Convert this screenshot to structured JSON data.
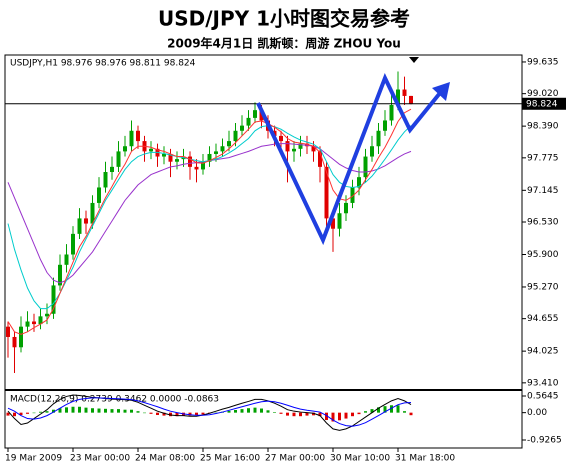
{
  "title": "USD/JPY 1小时图交易参考",
  "subtitle": "2009年4月1日 凯斯顿：周游 ZHOU You",
  "chart_data": [
    {
      "type": "candlestick",
      "label": "USDJPY,H1 98.976 98.976 98.811 98.824",
      "categories": [
        "19 Mar 2009",
        null,
        null,
        null,
        null,
        null,
        null,
        null,
        null,
        null,
        "23 Mar 00:00",
        null,
        null,
        null,
        null,
        null,
        null,
        null,
        null,
        null,
        "24 Mar 08:00",
        null,
        null,
        null,
        null,
        null,
        null,
        null,
        null,
        null,
        "25 Mar 16:00",
        null,
        null,
        null,
        null,
        null,
        null,
        null,
        null,
        null,
        "27 Mar 00:00",
        null,
        null,
        null,
        null,
        null,
        null,
        null,
        null,
        null,
        "30 Mar 10:00",
        null,
        null,
        null,
        null,
        null,
        null,
        null,
        null,
        null,
        "31 Mar 18:00",
        null,
        null
      ],
      "open": [
        94.5,
        94.3,
        94.1,
        94.5,
        94.6,
        94.55,
        94.7,
        94.75,
        95.3,
        95.7,
        95.9,
        96.3,
        96.6,
        96.5,
        96.9,
        97.2,
        97.5,
        97.6,
        97.9,
        98.0,
        98.3,
        98.1,
        97.9,
        97.95,
        97.8,
        97.85,
        97.7,
        97.75,
        97.8,
        97.6,
        97.55,
        97.7,
        97.85,
        97.9,
        98.0,
        98.1,
        98.3,
        98.4,
        98.55,
        98.7,
        98.5,
        98.3,
        98.2,
        98.1,
        97.9,
        97.95,
        98.05,
        98.0,
        97.9,
        97.6,
        96.6,
        96.4,
        96.7,
        96.9,
        97.2,
        97.4,
        97.8,
        98.0,
        98.3,
        98.5,
        98.8,
        99.1,
        98.976
      ],
      "high": [
        94.6,
        94.4,
        94.7,
        94.8,
        94.75,
        94.85,
        94.95,
        95.45,
        95.9,
        96.1,
        96.45,
        96.8,
        96.75,
        97.05,
        97.4,
        97.7,
        97.8,
        98.1,
        98.2,
        98.5,
        98.4,
        98.2,
        98.1,
        98.05,
        98.0,
        97.95,
        97.9,
        97.95,
        97.9,
        97.75,
        97.85,
        98.0,
        98.05,
        98.15,
        98.3,
        98.45,
        98.6,
        98.7,
        98.85,
        98.8,
        98.6,
        98.4,
        98.3,
        98.2,
        98.1,
        98.2,
        98.2,
        98.1,
        98.0,
        97.7,
        96.75,
        96.9,
        97.05,
        97.35,
        97.6,
        97.95,
        98.2,
        98.45,
        98.7,
        99.0,
        99.45,
        99.35,
        98.976
      ],
      "low": [
        93.9,
        93.6,
        94.0,
        94.4,
        94.4,
        94.45,
        94.55,
        94.65,
        95.2,
        95.55,
        95.8,
        96.2,
        96.3,
        96.4,
        96.8,
        97.1,
        97.35,
        97.5,
        97.8,
        97.9,
        97.95,
        97.7,
        97.75,
        97.6,
        97.65,
        97.4,
        97.55,
        97.6,
        97.35,
        97.3,
        97.45,
        97.6,
        97.7,
        97.8,
        97.9,
        98.0,
        98.2,
        98.3,
        98.45,
        98.35,
        98.15,
        98.0,
        97.9,
        97.3,
        97.7,
        97.8,
        97.85,
        97.7,
        97.3,
        96.4,
        95.95,
        96.25,
        96.55,
        96.8,
        97.05,
        97.3,
        97.7,
        97.85,
        98.2,
        98.4,
        98.7,
        98.8,
        98.811
      ],
      "close": [
        94.3,
        94.1,
        94.5,
        94.6,
        94.55,
        94.7,
        94.75,
        95.3,
        95.7,
        95.9,
        96.3,
        96.6,
        96.5,
        96.9,
        97.2,
        97.5,
        97.6,
        97.9,
        98.0,
        98.3,
        98.1,
        97.9,
        97.95,
        97.8,
        97.85,
        97.7,
        97.75,
        97.8,
        97.6,
        97.55,
        97.7,
        97.85,
        97.9,
        98.0,
        98.1,
        98.3,
        98.4,
        98.55,
        98.7,
        98.5,
        98.3,
        98.2,
        98.1,
        97.9,
        97.95,
        98.05,
        98.0,
        97.9,
        97.6,
        96.6,
        96.4,
        96.7,
        96.9,
        97.2,
        97.4,
        97.8,
        98.0,
        98.3,
        98.5,
        98.8,
        99.1,
        98.976,
        98.824
      ],
      "up_color": "#00a000",
      "down_color": "#e00000",
      "series": [
        {
          "color": "#9933cc",
          "values": [
            97.3,
            97.0,
            96.7,
            96.4,
            96.1,
            95.8,
            95.55,
            95.4,
            95.35,
            95.4,
            95.5,
            95.65,
            95.8,
            95.95,
            96.15,
            96.35,
            96.55,
            96.75,
            96.95,
            97.1,
            97.25,
            97.35,
            97.45,
            97.5,
            97.55,
            97.6,
            97.62,
            97.65,
            97.67,
            97.68,
            97.7,
            97.72,
            97.74,
            97.76,
            97.78,
            97.82,
            97.86,
            97.9,
            97.95,
            98.0,
            98.02,
            98.04,
            98.05,
            98.05,
            98.04,
            98.03,
            98.02,
            98.0,
            97.95,
            97.85,
            97.75,
            97.65,
            97.58,
            97.53,
            97.5,
            97.5,
            97.52,
            97.56,
            97.62,
            97.7,
            97.78,
            97.85,
            97.9
          ]
        },
        {
          "color": "#00cccc",
          "values": [
            96.5,
            96.0,
            95.6,
            95.25,
            95.0,
            94.85,
            94.85,
            94.95,
            95.15,
            95.4,
            95.65,
            95.95,
            96.2,
            96.45,
            96.7,
            96.95,
            97.15,
            97.35,
            97.55,
            97.7,
            97.8,
            97.85,
            97.88,
            97.88,
            97.86,
            97.83,
            97.8,
            97.78,
            97.75,
            97.72,
            97.7,
            97.72,
            97.75,
            97.8,
            97.87,
            97.95,
            98.05,
            98.15,
            98.3,
            98.38,
            98.4,
            98.38,
            98.33,
            98.25,
            98.18,
            98.12,
            98.08,
            98.04,
            97.95,
            97.7,
            97.45,
            97.3,
            97.22,
            97.2,
            97.22,
            97.3,
            97.42,
            97.58,
            97.75,
            97.93,
            98.12,
            98.28,
            98.4
          ]
        },
        {
          "color": "#ff3333",
          "values": [
            94.6,
            94.4,
            94.35,
            94.4,
            94.48,
            94.55,
            94.63,
            94.85,
            95.15,
            95.45,
            95.75,
            96.05,
            96.25,
            96.5,
            96.75,
            97.0,
            97.22,
            97.45,
            97.65,
            97.9,
            98.0,
            98.0,
            97.98,
            97.93,
            97.9,
            97.85,
            97.8,
            97.8,
            97.75,
            97.68,
            97.67,
            97.72,
            97.78,
            97.85,
            97.95,
            98.07,
            98.2,
            98.33,
            98.47,
            98.49,
            98.44,
            98.37,
            98.28,
            98.15,
            98.08,
            98.06,
            98.04,
            98.0,
            97.88,
            97.5,
            97.15,
            96.98,
            96.95,
            97.03,
            97.15,
            97.35,
            97.55,
            97.78,
            97.98,
            98.22,
            98.48,
            98.65,
            98.72
          ]
        }
      ],
      "current_price": 98.824,
      "ylim": [
        93.31,
        99.77
      ],
      "yticks": [
        99.635,
        {
          "value": 99.02,
          "label": "99.020"
        },
        {
          "value": 98.39,
          "label": "98.390"
        },
        97.775,
        97.145,
        {
          "value": 96.53,
          "label": "96.530"
        },
        {
          "value": 95.9,
          "label": "95.900"
        },
        {
          "value": 95.27,
          "label": "95.270"
        },
        94.655,
        94.025,
        {
          "value": 93.41,
          "label": "93.410"
        }
      ]
    },
    {
      "type": "macd",
      "label": "MACD(12,26,9) 0.2739 0.3462 0.0000 -0.0863",
      "values": [
        -0.1,
        -0.12,
        -0.08,
        -0.04,
        0.0,
        0.03,
        0.05,
        0.1,
        0.15,
        0.18,
        0.2,
        0.2,
        0.17,
        0.15,
        0.14,
        0.13,
        0.12,
        0.12,
        0.1,
        0.1,
        0.05,
        0.0,
        -0.04,
        -0.08,
        -0.1,
        -0.12,
        -0.12,
        -0.1,
        -0.1,
        -0.09,
        -0.06,
        -0.03,
        0.0,
        0.03,
        0.06,
        0.09,
        0.12,
        0.15,
        0.17,
        0.14,
        0.08,
        0.02,
        -0.04,
        -0.1,
        -0.12,
        -0.12,
        -0.1,
        -0.09,
        -0.12,
        -0.25,
        -0.3,
        -0.26,
        -0.2,
        -0.12,
        -0.05,
        0.05,
        0.12,
        0.18,
        0.22,
        0.25,
        0.25,
        0.05,
        -0.0863
      ],
      "up_color": "#00a000",
      "down_color": "#e00000",
      "series": [
        {
          "color": "#000000",
          "values": [
            0.05,
            -0.2,
            -0.4,
            -0.35,
            -0.2,
            -0.05,
            0.1,
            0.3,
            0.45,
            0.55,
            0.6,
            0.58,
            0.55,
            0.52,
            0.5,
            0.48,
            0.46,
            0.45,
            0.44,
            0.42,
            0.35,
            0.25,
            0.15,
            0.05,
            -0.02,
            -0.08,
            -0.1,
            -0.1,
            -0.12,
            -0.12,
            -0.08,
            -0.02,
            0.05,
            0.12,
            0.18,
            0.25,
            0.32,
            0.38,
            0.45,
            0.45,
            0.4,
            0.32,
            0.22,
            0.1,
            0.05,
            0.02,
            0.0,
            -0.02,
            -0.1,
            -0.35,
            -0.55,
            -0.6,
            -0.55,
            -0.45,
            -0.3,
            -0.15,
            0.0,
            0.15,
            0.28,
            0.4,
            0.48,
            0.4,
            0.2739
          ]
        },
        {
          "color": "#0000ff",
          "values": [
            0.15,
            0.05,
            -0.1,
            -0.2,
            -0.22,
            -0.18,
            -0.1,
            0.02,
            0.15,
            0.28,
            0.38,
            0.45,
            0.48,
            0.5,
            0.5,
            0.49,
            0.48,
            0.47,
            0.46,
            0.44,
            0.4,
            0.34,
            0.27,
            0.2,
            0.12,
            0.05,
            0.0,
            -0.04,
            -0.07,
            -0.09,
            -0.09,
            -0.07,
            -0.03,
            0.02,
            0.08,
            0.14,
            0.2,
            0.26,
            0.32,
            0.37,
            0.39,
            0.37,
            0.32,
            0.25,
            0.18,
            0.12,
            0.08,
            0.05,
            0.02,
            -0.1,
            -0.25,
            -0.37,
            -0.44,
            -0.46,
            -0.42,
            -0.34,
            -0.22,
            -0.1,
            0.03,
            0.15,
            0.27,
            0.33,
            0.3462
          ]
        }
      ],
      "ylim": [
        -1.198,
        0.734
      ],
      "yticks": [
        0.5645,
        {
          "value": 0,
          "label": "0.00"
        },
        -0.9265
      ]
    }
  ]
}
